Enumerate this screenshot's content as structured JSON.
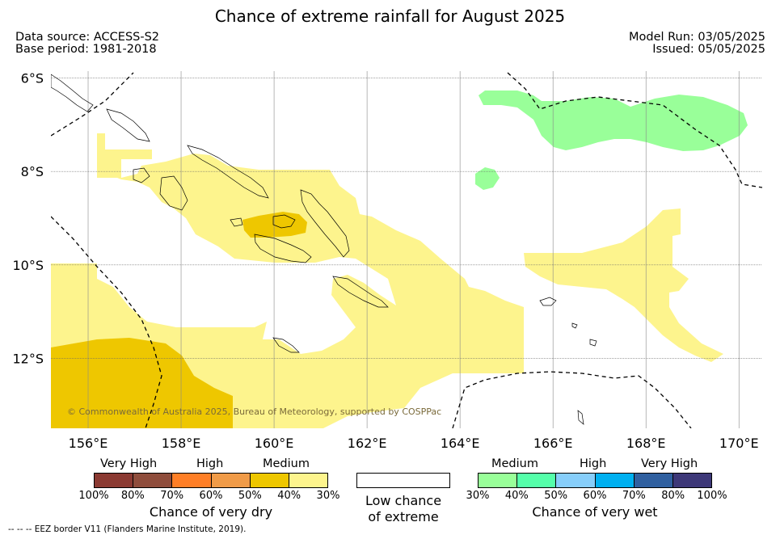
{
  "header": {
    "title": "Chance of extreme rainfall for August 2025",
    "data_source": "Data source: ACCESS-S2",
    "base_period": "Base period: 1981-2018",
    "model_run": "Model Run: 03/05/2025",
    "issued": "Issued: 05/05/2025"
  },
  "map": {
    "lat_labels": [
      "6°S",
      "8°S",
      "10°S",
      "12°S"
    ],
    "lon_labels": [
      "156°E",
      "158°E",
      "160°E",
      "162°E",
      "164°E",
      "166°E",
      "168°E",
      "170°E"
    ],
    "lat_values": [
      -6,
      -8,
      -10,
      -12
    ],
    "lon_values": [
      156,
      158,
      160,
      162,
      164,
      166,
      168,
      170
    ],
    "extent": {
      "lon_min": 155.2,
      "lon_max": 170.5,
      "lat_min": -13.5,
      "lat_max": -5.85
    },
    "copyright": "© Commonwealth of Australia 2025, Bureau of Meteorology, supported by COSPPac",
    "colors": {
      "dry_medium": "#fdf48d",
      "dry_high": "#eec700",
      "wet_medium": "#99ff99",
      "coast": "#000000"
    }
  },
  "legend": {
    "dry": {
      "categories": [
        "Very High",
        "High",
        "Medium"
      ],
      "ticks": [
        "100%",
        "80%",
        "70%",
        "60%",
        "50%",
        "40%",
        "30%"
      ],
      "colors": [
        "#8b3a32",
        "#8f4d3c",
        "#ff7f27",
        "#f09b48",
        "#eec700",
        "#fdf48d"
      ],
      "title": "Chance of very dry"
    },
    "low": {
      "title_line1": "Low chance",
      "title_line2": "of extreme",
      "color": "#ffffff"
    },
    "wet": {
      "categories": [
        "Medium",
        "High",
        "Very High"
      ],
      "ticks": [
        "30%",
        "40%",
        "50%",
        "60%",
        "70%",
        "80%",
        "100%"
      ],
      "colors": [
        "#99ff99",
        "#55ffaa",
        "#87cefa",
        "#00b0f0",
        "#3060a0",
        "#3d3878"
      ],
      "title": "Chance of very wet"
    }
  },
  "footnote": "--  --  -- EEZ border V11 (Flanders Marine Institute, 2019)."
}
